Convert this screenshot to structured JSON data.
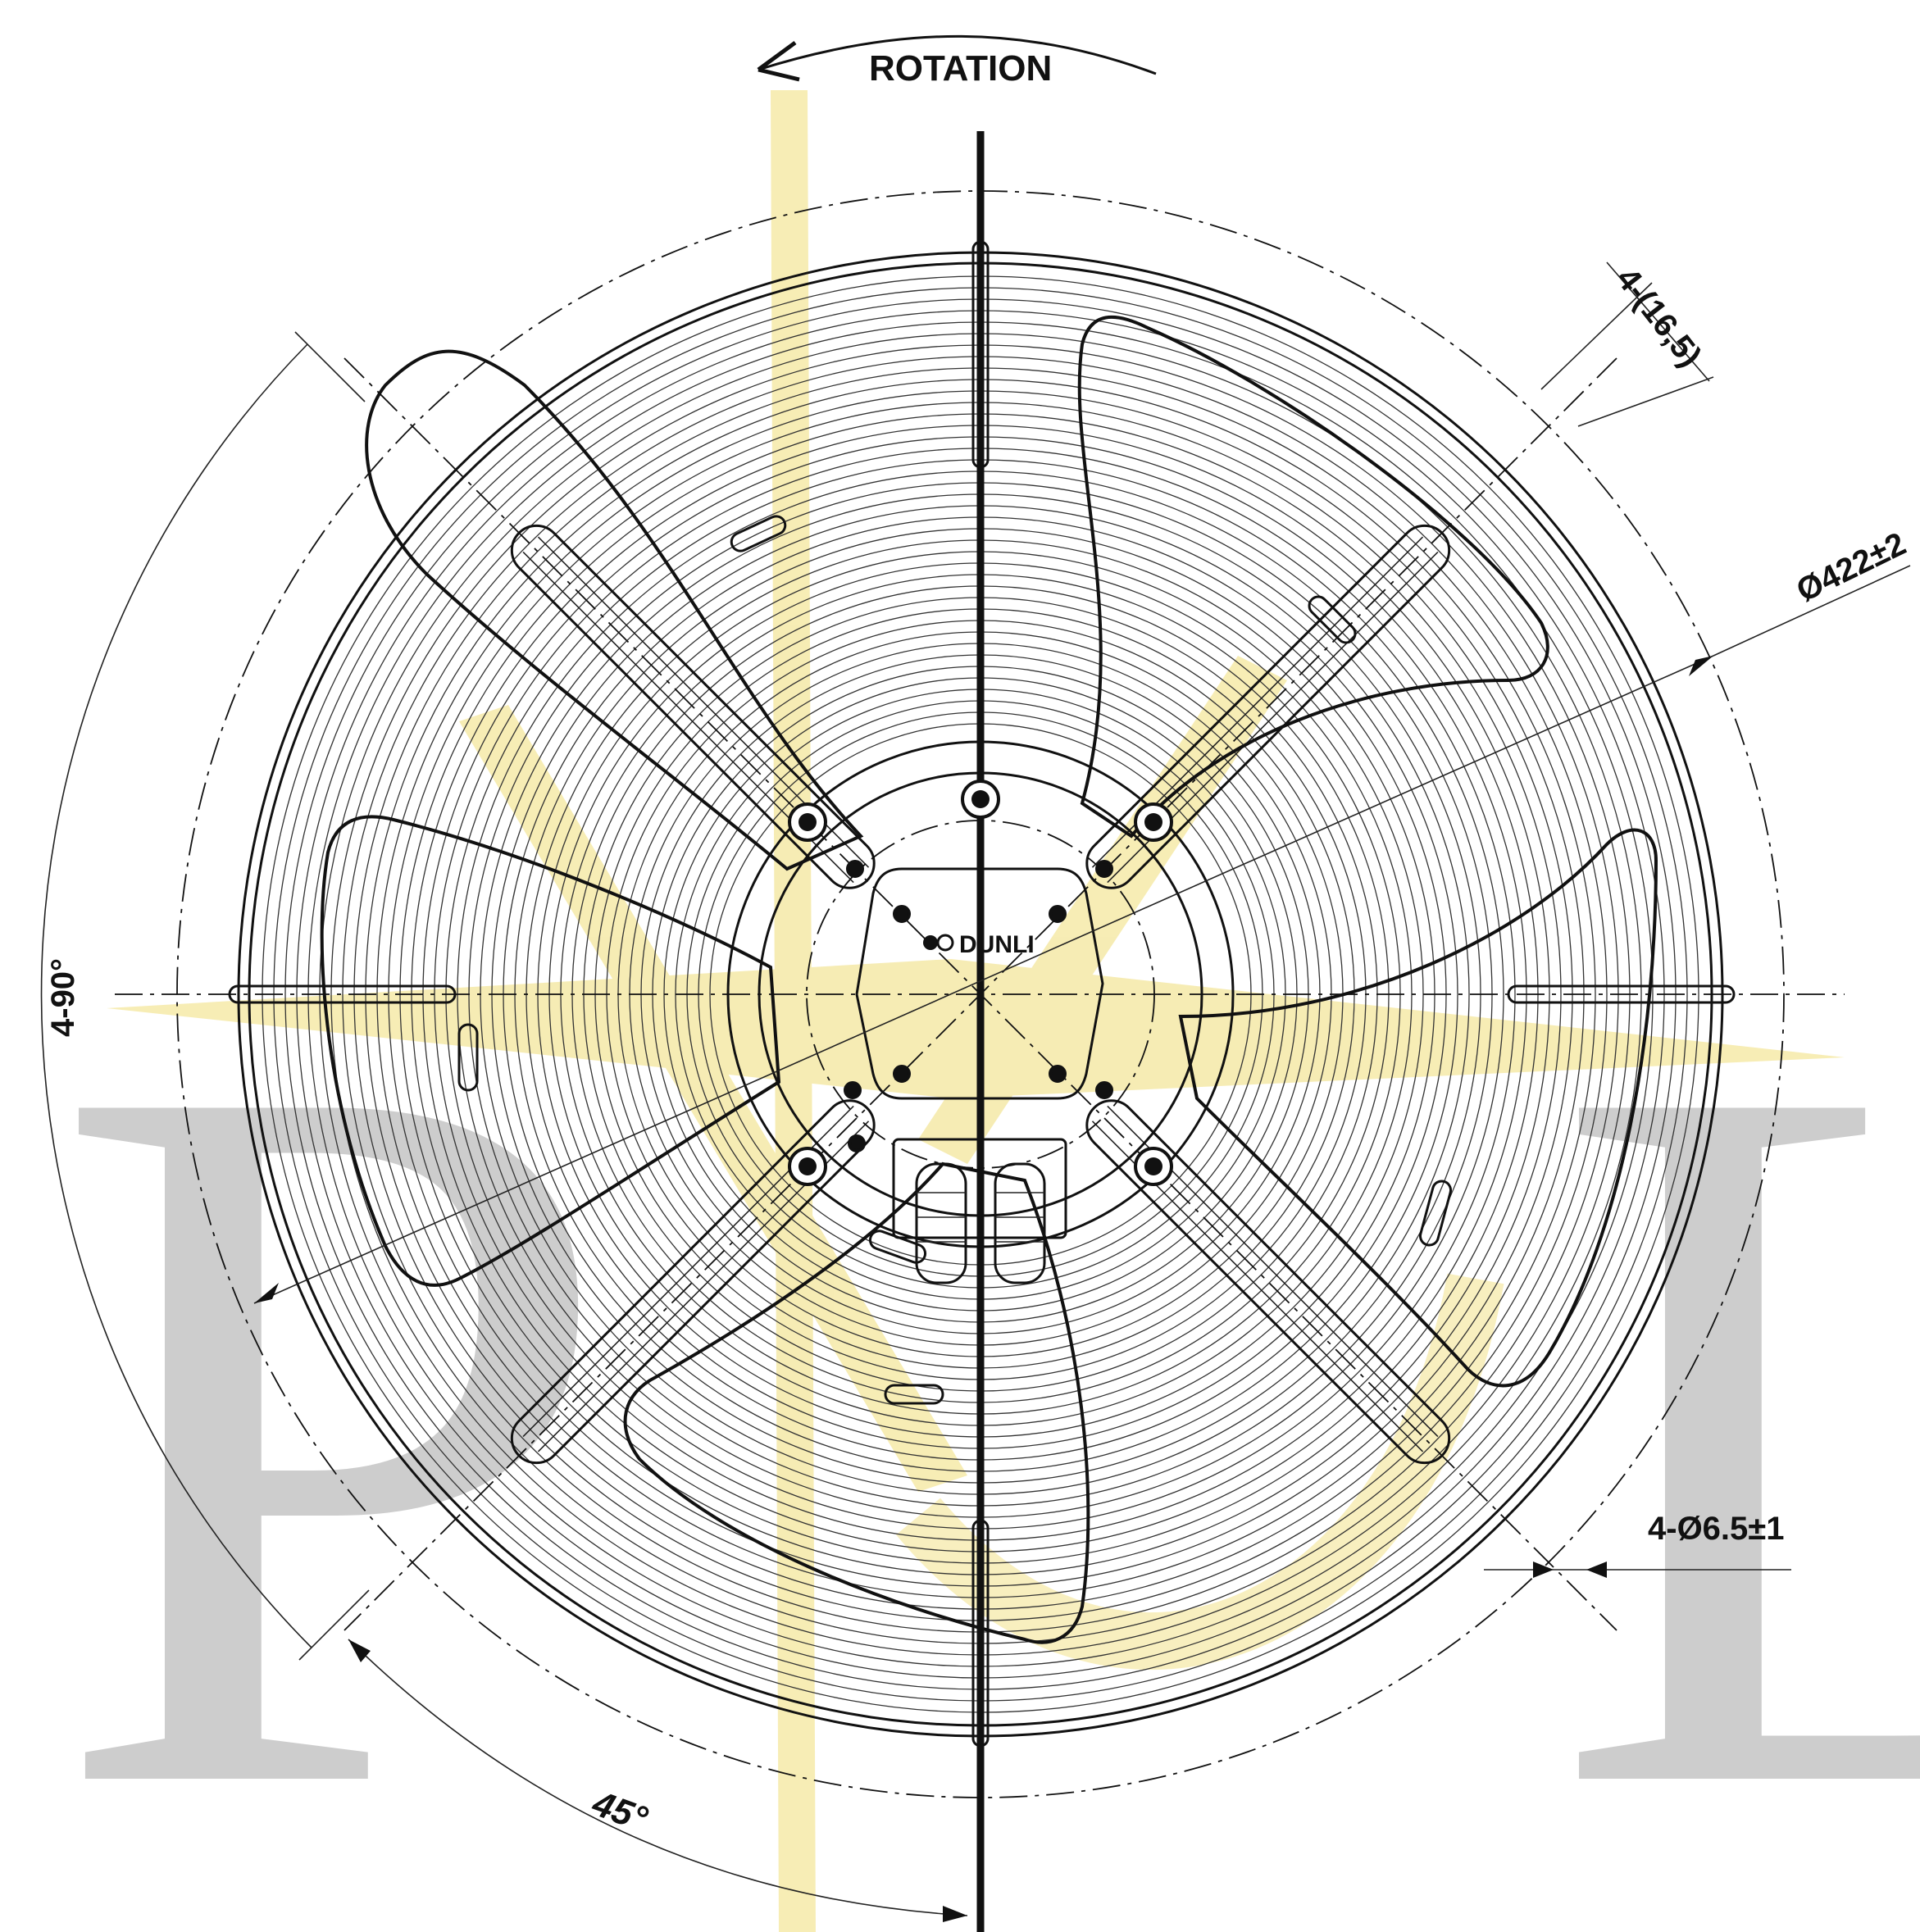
{
  "drawing": {
    "rotation_label": "ROTATION",
    "diameter_label": "Ø422±2",
    "slot_width_label": "4-(16,5)",
    "hole_label": "4-Ø6.5±1",
    "angle_count_label": "4-90°",
    "angle_label": "45°",
    "brand_label": "DUNLI"
  },
  "watermark": {
    "letters": [
      "P",
      "L"
    ],
    "letter_color": "#8a8a8a",
    "gold_color": "#e6c619"
  },
  "colors": {
    "line": "#111111",
    "background": "#ffffff"
  }
}
